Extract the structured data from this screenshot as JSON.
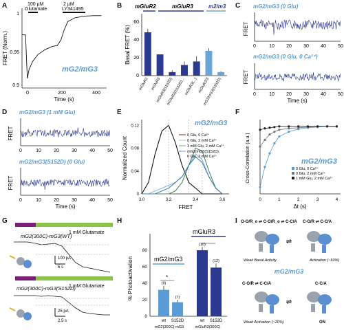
{
  "panels": {
    "A": {
      "letter": "A",
      "ylabel": "FRET (Norm.)",
      "xlabel": "Time (s)",
      "annot_glu": [
        "100 µM",
        "Glutamate"
      ],
      "annot_ly": [
        "2 µM",
        "LY341495"
      ],
      "construct": "mG2/mG3",
      "yticks": [
        "1",
        "0.95",
        "0.9"
      ],
      "xticks": [
        "0",
        "200",
        "400"
      ]
    },
    "B": {
      "letter": "B",
      "ylabel": "Basal FRET (%)",
      "group_labels": [
        "mGluR2",
        "mGluR3",
        "m2/m3"
      ],
      "yticks": [
        "0",
        "20",
        "40",
        "60"
      ],
      "categories": [
        "mGluR2",
        "mGluR3",
        "mGluR3(S152D)",
        "mGluR3(S152D)...",
        "mGluR3(...)",
        "mGluR2/3",
        "mG2/mG3(S152D)"
      ]
    },
    "C": {
      "letter": "C",
      "title1": "mG2/mG3 (0 Glu)",
      "title2": "mG2/mG3 (0 Glu, 0 Ca²⁺)",
      "ylabel": "FRET",
      "xlabel": "Time (s)",
      "xticks": [
        "0",
        "10",
        "20",
        "30",
        "40",
        "50"
      ]
    },
    "D": {
      "letter": "D",
      "title1": "mG2/mG3 (1 mM Glu)",
      "title2": "mG2/mG3(S152D) (0 Glu)",
      "ylabel": "FRET",
      "xlabel": "Time (s)",
      "xticks": [
        "0",
        "10",
        "20",
        "30",
        "40",
        "50"
      ]
    },
    "E": {
      "letter": "E",
      "ylabel": "Normalized Count",
      "xlabel": "FRET",
      "construct": "mG2/mG3",
      "yticks": [
        "0",
        "0.04",
        "0.08",
        "0.12"
      ],
      "xticks": [
        "3.0",
        "3.2",
        "3.4",
        "3.6"
      ],
      "legend": [
        "0 Glu, 0 Ca²⁺",
        "0 Glu, 2 mM Ca²⁺",
        "1 mM Glu, 2 mM Ca²⁺",
        "mG2/mG3(S152D),",
        "0 Glu, 2 mM Ca²⁺"
      ]
    },
    "F": {
      "letter": "F",
      "ylabel": "Cross-Correlation (a.u.)",
      "xlabel": "Δt (s)",
      "construct": "mG2/mG3",
      "xticks": [
        "0",
        "1",
        "2",
        "3",
        "4"
      ],
      "legend": [
        "0 Glu, 0 Ca²⁺",
        "0 Glu, 2 mM Ca²⁺",
        "1 mM Glu, 2 mM Ca²⁺"
      ]
    },
    "G": {
      "letter": "G",
      "trace1": "mG2(300C)-mG3(WT)",
      "trace2": "mG2(300C)-mG3(S152D)",
      "bar_label": "1 mM Glutamate",
      "scale1": [
        "100 pA",
        "5 s"
      ],
      "scale2": [
        "25 pA",
        "2.5 s"
      ]
    },
    "H": {
      "letter": "H",
      "ylabel": "% Photoactivation",
      "yticks": [
        "0",
        "20",
        "40",
        "60",
        "80"
      ],
      "group1": "mG2/mG3",
      "group2": "mGluR3",
      "xcat": [
        "wt",
        "S152D",
        "wt",
        "S152D"
      ],
      "xgroup": [
        "mG2(300C)-mG3",
        "mGluR3(300C)"
      ],
      "n_labels": [
        "(9)",
        "(7)",
        "(10)",
        "(12)"
      ],
      "sig": "*"
    },
    "I": {
      "letter": "I",
      "state_top_left": "O-O/R_o ⇌ C-O/R_o ⇌ C-C/A",
      "state_top_right": "C-O/R ⇌ C-C/A",
      "state_mid_left": "C-O/R ⇌ C-C/A",
      "state_mid_right": "C-C/A",
      "label_basal": "Weak Basal Activity",
      "label_act": "Activation (~50%)",
      "label_weak": "Weak Activation (~20%)",
      "label_on": "ON",
      "center": "mG2/mG3"
    }
  },
  "chart_data": [
    {
      "panel": "A",
      "type": "line",
      "x": [
        0,
        20,
        30,
        40,
        60,
        90,
        130,
        170,
        200,
        220,
        240,
        260,
        300,
        350,
        400,
        450
      ],
      "y": [
        1.0,
        1.0,
        0.918,
        0.935,
        0.95,
        0.963,
        0.972,
        0.978,
        0.98,
        0.99,
        1.01,
        1.025,
        1.032,
        1.035,
        1.036,
        1.036
      ],
      "xlim": [
        0,
        480
      ],
      "ylim": [
        0.9,
        1.05
      ]
    },
    {
      "panel": "B",
      "type": "bar",
      "values": [
        49,
        24,
        4,
        12,
        16,
        28,
        4
      ],
      "errors": [
        4,
        0,
        2,
        4,
        6,
        3,
        1
      ],
      "colors": [
        "#2b3990",
        "#2b3990",
        "#2b3990",
        "#2b3990",
        "#2b3990",
        "#6aa3d8",
        "#6aa3d8"
      ],
      "ylim": [
        0,
        70
      ]
    },
    {
      "panel": "E",
      "type": "line",
      "x": [
        3.0,
        3.05,
        3.1,
        3.15,
        3.2,
        3.25,
        3.3,
        3.35,
        3.4,
        3.45,
        3.5,
        3.55,
        3.6
      ],
      "series": [
        {
          "name": "0 Glu, 0 Ca²⁺",
          "values": [
            0.0,
            0.02,
            0.07,
            0.11,
            0.12,
            0.09,
            0.05,
            0.02,
            0.01,
            0.0,
            0.0,
            0.0,
            0.0
          ]
        },
        {
          "name": "0 Glu, 2 mM Ca²⁺",
          "values": [
            0.0,
            0.0,
            0.005,
            0.01,
            0.015,
            0.02,
            0.03,
            0.05,
            0.07,
            0.06,
            0.03,
            0.01,
            0.0
          ]
        },
        {
          "name": "1 mM Glu, 2 mM Ca²⁺",
          "values": [
            0.0,
            0.0,
            0.0,
            0.0,
            0.0,
            0.005,
            0.02,
            0.05,
            0.08,
            0.075,
            0.04,
            0.01,
            0.0
          ]
        },
        {
          "name": "mG2/mG3(S152D), 0 Glu, 2 mM Ca²⁺",
          "values": [
            0.0,
            0.0,
            0.0,
            0.005,
            0.01,
            0.02,
            0.03,
            0.05,
            0.065,
            0.055,
            0.03,
            0.01,
            0.0
          ]
        }
      ],
      "colors": [
        "#111111",
        "#8fb7d8",
        "#4f8a5c",
        "#3f7fbf"
      ],
      "xlim": [
        3.0,
        3.65
      ],
      "ylim": [
        0,
        0.13
      ]
    },
    {
      "panel": "F",
      "type": "scatter",
      "x": [
        0,
        0.25,
        0.5,
        0.75,
        1.0,
        1.5,
        2.0,
        2.5,
        3.0,
        3.5,
        4.0
      ],
      "series": [
        {
          "name": "0 Glu, 0 Ca²⁺",
          "values": [
            -0.9,
            -0.6,
            -0.4,
            -0.25,
            -0.15,
            -0.08,
            -0.04,
            -0.02,
            -0.01,
            0.0,
            0.0
          ]
        },
        {
          "name": "0 Glu, 2 mM Ca²⁺",
          "values": [
            -0.3,
            -0.2,
            -0.12,
            -0.08,
            -0.05,
            -0.03,
            -0.02,
            -0.01,
            0.0,
            0.0,
            0.0
          ]
        },
        {
          "name": "1 mM Glu, 2 mM Ca²⁺",
          "values": [
            -0.05,
            -0.03,
            -0.02,
            -0.01,
            0.0,
            0.0,
            0.0,
            0.0,
            0.0,
            0.0,
            0.0
          ]
        }
      ],
      "colors": [
        "#5b9bd5",
        "#777777",
        "#222222"
      ],
      "xlim": [
        0,
        4.2
      ],
      "ylim": [
        -1.0,
        0.1
      ]
    },
    {
      "panel": "H",
      "type": "bar",
      "categories": [
        "wt",
        "S152D",
        "wt",
        "S152D"
      ],
      "values": [
        32,
        17,
        80,
        59
      ],
      "errors": [
        5,
        3,
        4,
        5
      ],
      "colors": [
        "#5b9bd5",
        "#5b9bd5",
        "#2b3990",
        "#2b3990"
      ],
      "ylim": [
        0,
        100
      ]
    }
  ]
}
